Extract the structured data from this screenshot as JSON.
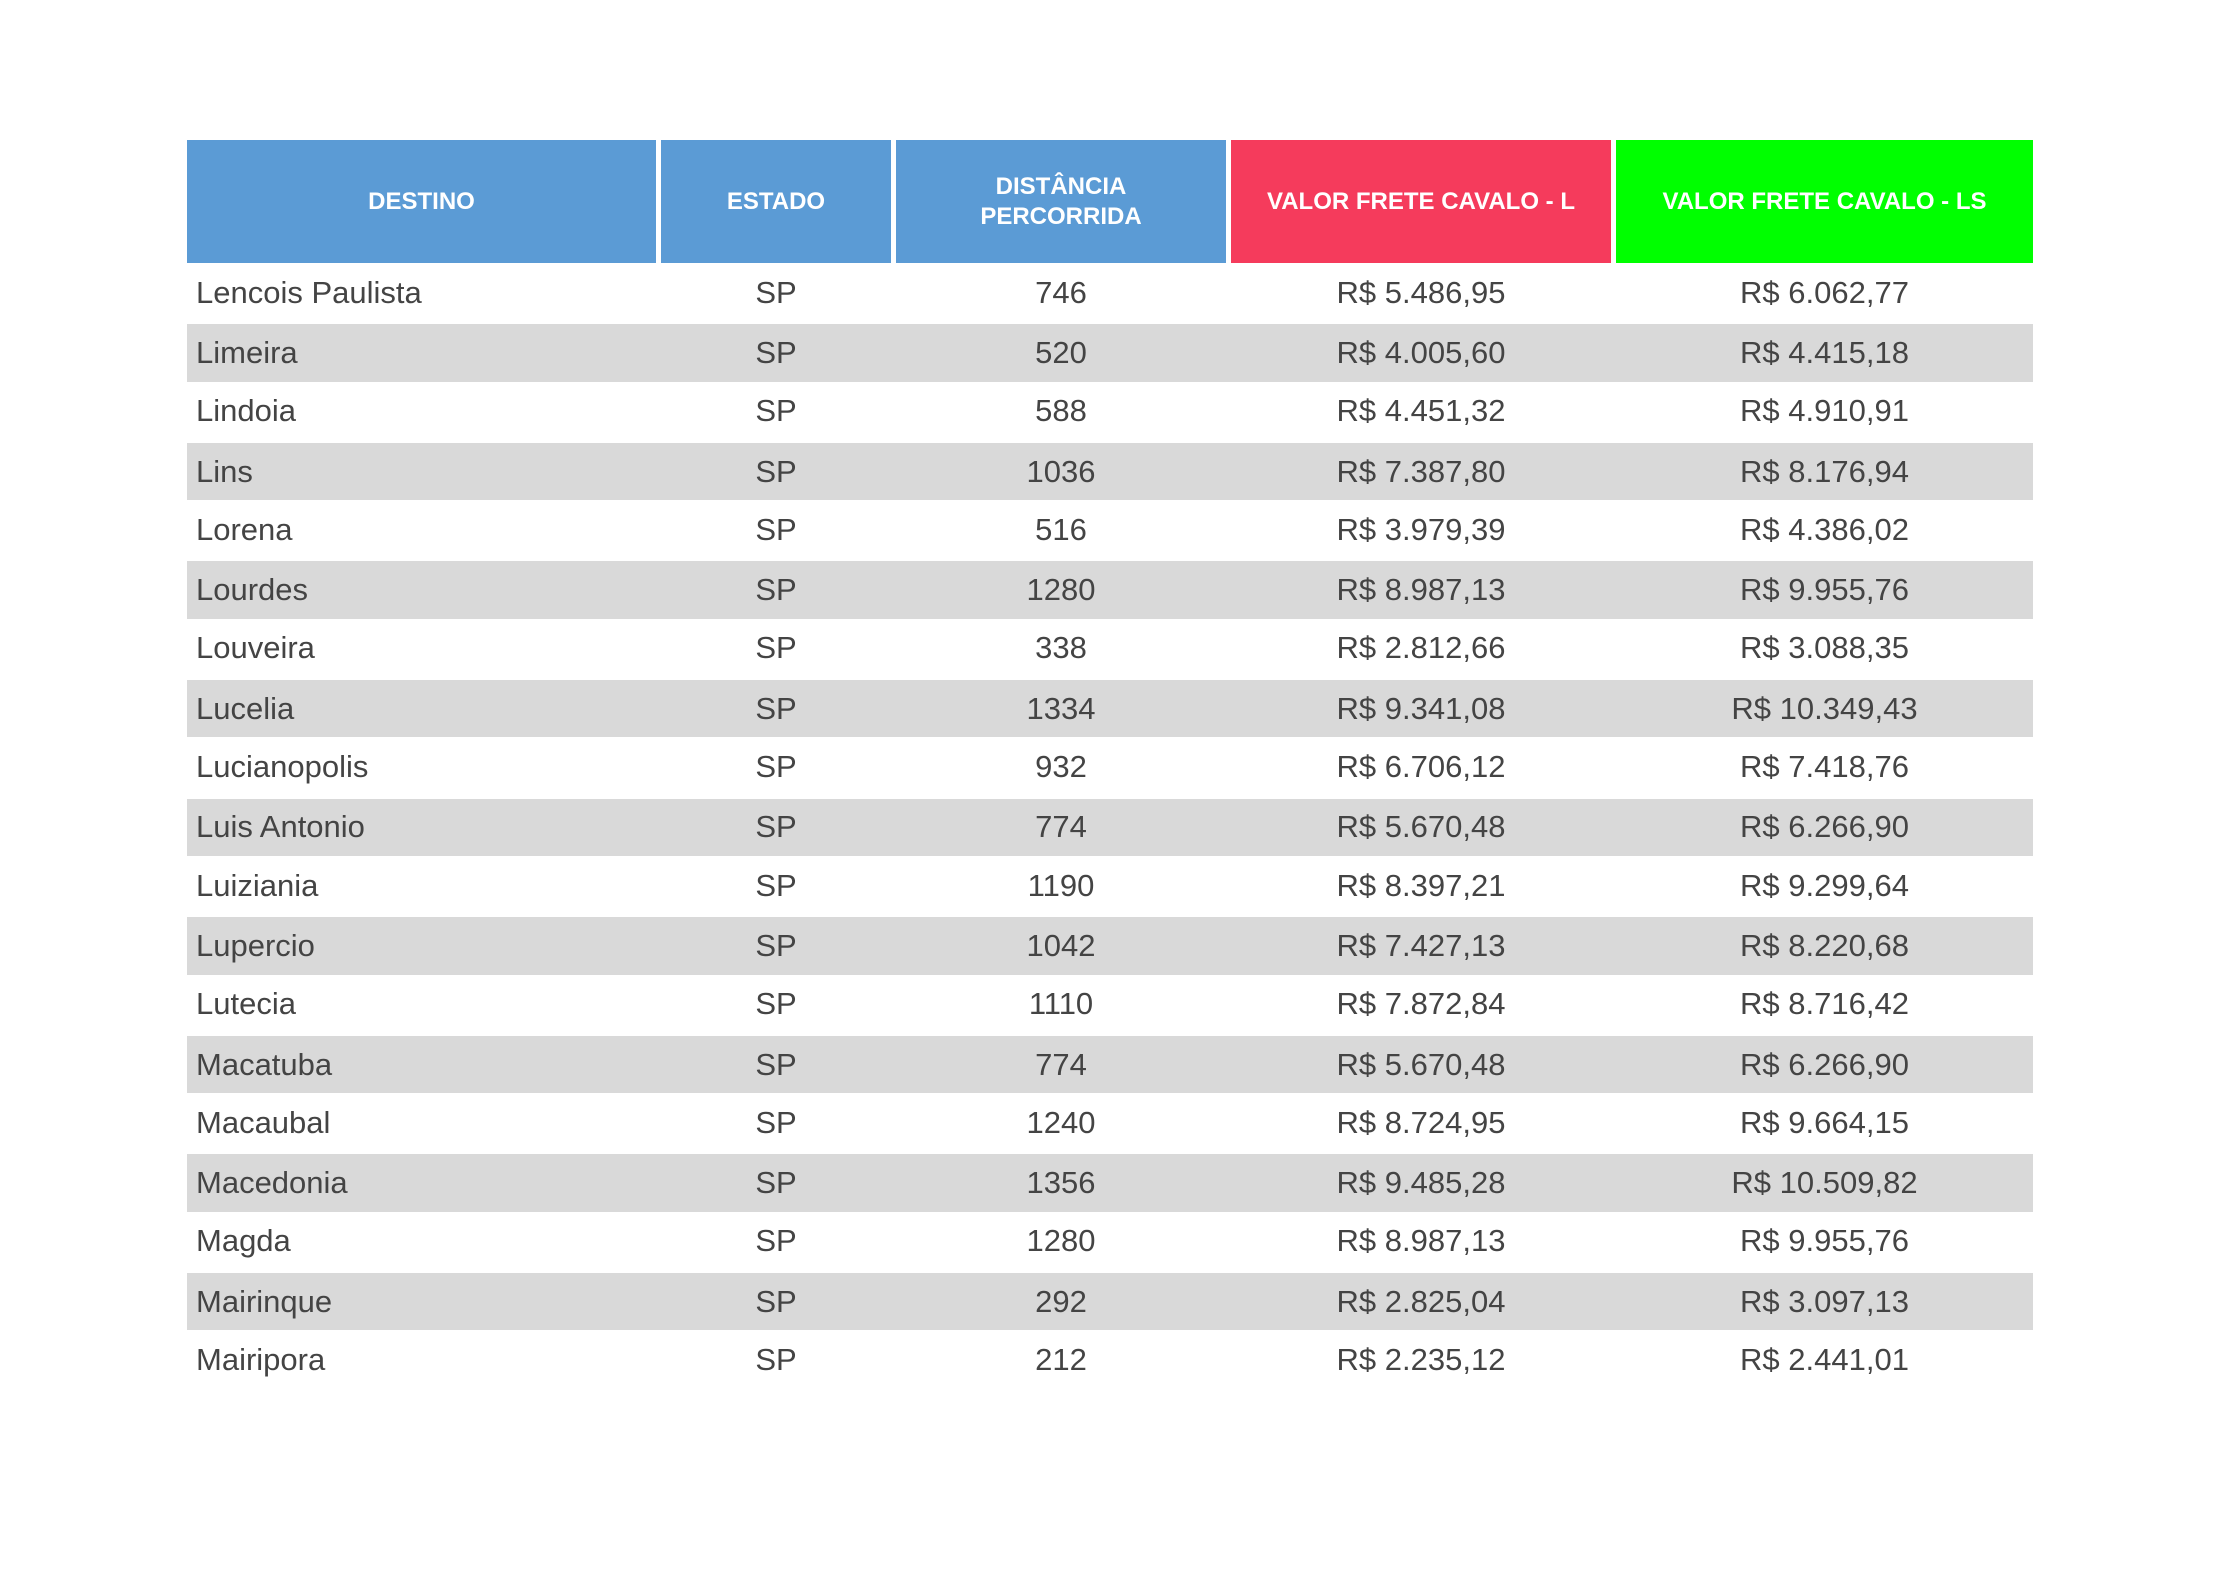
{
  "colors": {
    "header_blue": "#5b9bd5",
    "header_red": "#f53b5c",
    "header_green": "#00ff00",
    "alt_row": "#d9d9d9",
    "text": "#444444"
  },
  "headers": [
    "DESTINO",
    "ESTADO",
    "DISTÂNCIA PERCORRIDA",
    "VALOR FRETE CAVALO - L",
    "VALOR FRETE CAVALO - LS"
  ],
  "rows": [
    [
      "Lencois Paulista",
      "SP",
      "746",
      "R$ 5.486,95",
      "R$ 6.062,77"
    ],
    [
      "Limeira",
      "SP",
      "520",
      "R$ 4.005,60",
      "R$ 4.415,18"
    ],
    [
      "Lindoia",
      "SP",
      "588",
      "R$ 4.451,32",
      "R$ 4.910,91"
    ],
    [
      "Lins",
      "SP",
      "1036",
      "R$ 7.387,80",
      "R$ 8.176,94"
    ],
    [
      "Lorena",
      "SP",
      "516",
      "R$ 3.979,39",
      "R$ 4.386,02"
    ],
    [
      "Lourdes",
      "SP",
      "1280",
      "R$ 8.987,13",
      "R$ 9.955,76"
    ],
    [
      "Louveira",
      "SP",
      "338",
      "R$ 2.812,66",
      "R$ 3.088,35"
    ],
    [
      "Lucelia",
      "SP",
      "1334",
      "R$ 9.341,08",
      "R$ 10.349,43"
    ],
    [
      "Lucianopolis",
      "SP",
      "932",
      "R$ 6.706,12",
      "R$ 7.418,76"
    ],
    [
      "Luis Antonio",
      "SP",
      "774",
      "R$ 5.670,48",
      "R$ 6.266,90"
    ],
    [
      "Luiziania",
      "SP",
      "1190",
      "R$ 8.397,21",
      "R$ 9.299,64"
    ],
    [
      "Lupercio",
      "SP",
      "1042",
      "R$ 7.427,13",
      "R$ 8.220,68"
    ],
    [
      "Lutecia",
      "SP",
      "1110",
      "R$ 7.872,84",
      "R$ 8.716,42"
    ],
    [
      "Macatuba",
      "SP",
      "774",
      "R$ 5.670,48",
      "R$ 6.266,90"
    ],
    [
      "Macaubal",
      "SP",
      "1240",
      "R$ 8.724,95",
      "R$ 9.664,15"
    ],
    [
      "Macedonia",
      "SP",
      "1356",
      "R$ 9.485,28",
      "R$ 10.509,82"
    ],
    [
      "Magda",
      "SP",
      "1280",
      "R$ 8.987,13",
      "R$ 9.955,76"
    ],
    [
      "Mairinque",
      "SP",
      "292",
      "R$ 2.825,04",
      "R$ 3.097,13"
    ],
    [
      "Mairipora",
      "SP",
      "212",
      "R$ 2.235,12",
      "R$ 2.441,01"
    ]
  ]
}
